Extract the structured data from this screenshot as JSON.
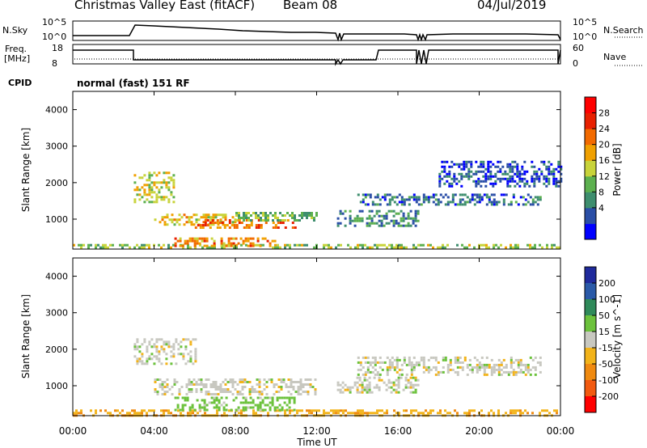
{
  "header": {
    "title": "Christmas Valley East (fitACF)",
    "beam": "Beam 08",
    "date": "04/Jul/2019"
  },
  "params": {
    "nsky_label": "N.Sky",
    "nsearch_label": "N.Search",
    "freq_label_1": "Freq.",
    "freq_label_2": "[MHz]",
    "nave_label": "Nave",
    "cpid_label": "CPID",
    "cpid_value": "normal (fast) 151 RF",
    "noise_ticks_left": [
      "10^5",
      "10^0"
    ],
    "noise_ticks_right": [
      "10^5",
      "10^0"
    ],
    "freq_ticks": [
      "18",
      "8"
    ],
    "nave_ticks": [
      "60",
      "0"
    ]
  },
  "colorbars": {
    "power": {
      "label": "Power [dB]",
      "ticks": [
        "28",
        "24",
        "20",
        "16",
        "12",
        "8",
        "4"
      ],
      "colors": [
        "#0000ff",
        "#2a4ea6",
        "#3e8e6e",
        "#5cb04f",
        "#c8d33a",
        "#f0a000",
        "#f26a00",
        "#e82000",
        "#ff0000"
      ]
    },
    "velocity": {
      "label": "Velocity [m s^-1]",
      "ticks": [
        "200",
        "100",
        "50",
        "15",
        "-15",
        "-50",
        "-100",
        "-200"
      ],
      "colors": [
        "#1f2a9c",
        "#2a5aa8",
        "#2f8a5a",
        "#6cc23c",
        "#c8c8c0",
        "#f2b31a",
        "#f08a10",
        "#f25a10",
        "#ff0000"
      ]
    }
  },
  "chart_data": [
    {
      "type": "heatmap",
      "ylabel": "Slant Range [km]",
      "yticks": [
        "4000",
        "3000",
        "2000",
        "1000"
      ],
      "ylim": [
        180,
        4500
      ],
      "xlim": [
        "00:00",
        "24:00"
      ],
      "xticks": [
        "00:00",
        "04:00",
        "08:00",
        "12:00",
        "16:00",
        "20:00",
        "00:00"
      ],
      "value": "Power [dB]",
      "regions": [
        {
          "t": [
            0.0,
            24.0
          ],
          "r": [
            200,
            320
          ],
          "v": 16,
          "note": "near-range band"
        },
        {
          "t": [
            3.0,
            5.0
          ],
          "r": [
            1500,
            2300
          ],
          "v": 18
        },
        {
          "t": [
            4.0,
            8.0
          ],
          "r": [
            850,
            1150
          ],
          "v": 20
        },
        {
          "t": [
            6.0,
            11.0
          ],
          "r": [
            750,
            1000
          ],
          "v": 26
        },
        {
          "t": [
            8.0,
            12.0
          ],
          "r": [
            1000,
            1200
          ],
          "v": 14
        },
        {
          "t": [
            5.0,
            10.0
          ],
          "r": [
            300,
            500
          ],
          "v": 24
        },
        {
          "t": [
            13.0,
            17.0
          ],
          "r": [
            850,
            1250
          ],
          "v": 10
        },
        {
          "t": [
            14.0,
            23.0
          ],
          "r": [
            1400,
            1700
          ],
          "v": 8
        },
        {
          "t": [
            18.0,
            24.0
          ],
          "r": [
            1900,
            2600
          ],
          "v": 6
        }
      ]
    },
    {
      "type": "heatmap",
      "ylabel": "Slant Range [km]",
      "xlabel": "Time UT",
      "yticks": [
        "4000",
        "3000",
        "2000",
        "1000"
      ],
      "ylim": [
        180,
        4500
      ],
      "xlim": [
        "00:00",
        "24:00"
      ],
      "xticks": [
        "00:00",
        "04:00",
        "08:00",
        "12:00",
        "16:00",
        "20:00",
        "00:00"
      ],
      "value": "Velocity [m s^-1]",
      "regions": [
        {
          "t": [
            0.0,
            24.0
          ],
          "r": [
            200,
            350
          ],
          "v": -40
        },
        {
          "t": [
            3.0,
            6.0
          ],
          "r": [
            1600,
            2300
          ],
          "v": 0
        },
        {
          "t": [
            4.0,
            12.0
          ],
          "r": [
            800,
            1200
          ],
          "v": 0
        },
        {
          "t": [
            5.0,
            11.0
          ],
          "r": [
            350,
            700
          ],
          "v": 30
        },
        {
          "t": [
            13.0,
            17.0
          ],
          "r": [
            850,
            1250
          ],
          "v": 0
        },
        {
          "t": [
            14.0,
            23.0
          ],
          "r": [
            1300,
            1800
          ],
          "v": 0
        }
      ]
    }
  ]
}
